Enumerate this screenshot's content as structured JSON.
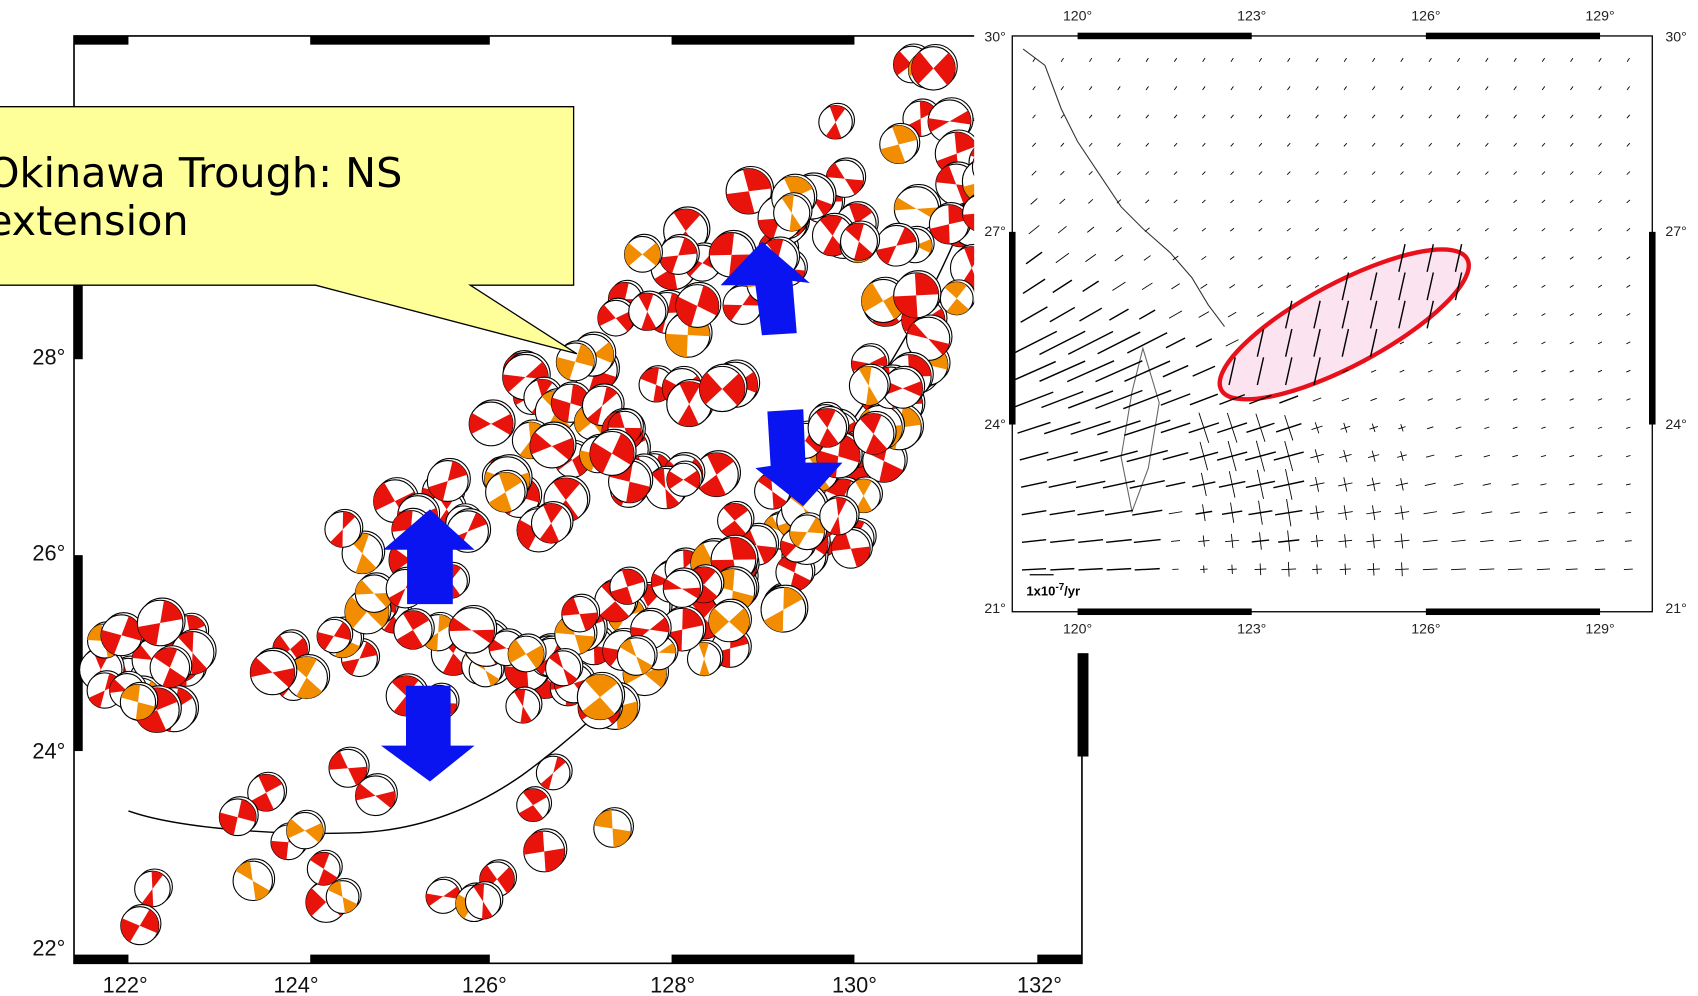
{
  "callout": {
    "lines": [
      "Okinawa Trough: NS",
      "extension"
    ]
  },
  "left_map": {
    "x_labels": [
      "122°",
      "124°",
      "126°",
      "128°",
      "130°",
      "132°"
    ],
    "y_labels": [
      "28°",
      "26°",
      "24°",
      "22°"
    ]
  },
  "right_map": {
    "top_labels": [
      "120°",
      "123°",
      "126°",
      "129°"
    ],
    "bottom_labels": [
      "120°",
      "123°",
      "126°",
      "129°"
    ],
    "left_labels": [
      "30°",
      "27°",
      "24°",
      "21°"
    ],
    "right_labels": [
      "30°",
      "27°",
      "24°",
      "21°"
    ],
    "scale_label": {
      "base": "1x10",
      "exponent": "-7",
      "unit": "/yr"
    }
  }
}
